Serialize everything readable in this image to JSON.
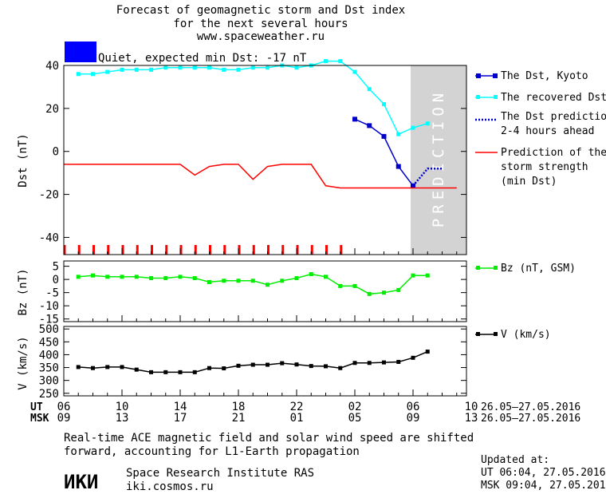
{
  "title": {
    "line1": "Forecast of geomagnetic storm and Dst index",
    "line2": "for the next several hours",
    "line3": "www.spaceweather.ru"
  },
  "status": {
    "text": "Quiet, expected min Dst: -17 nT",
    "color": "#0000ff"
  },
  "prediction_label": "PREDICTION",
  "axes": {
    "x_ut": {
      "label": "UT",
      "ticks": [
        "06",
        "10",
        "14",
        "18",
        "22",
        "02",
        "06",
        "10"
      ],
      "range_text": "26.05—27.05.2016"
    },
    "x_msk": {
      "label": "MSK",
      "ticks": [
        "09",
        "13",
        "17",
        "21",
        "01",
        "05",
        "09",
        "13"
      ],
      "range_text": "26.05—27.05.2016"
    }
  },
  "legend": {
    "dst_kyoto": "The Dst, Kyoto",
    "dst_recovered": "The recovered Dst",
    "dst_pred_line1": "The Dst prediction",
    "dst_pred_line2": "2-4 hours ahead",
    "storm_line1": "Prediction of the",
    "storm_line2": "storm strength",
    "storm_line3": "(min Dst)",
    "bz": "Bz (nT, GSM)",
    "v": "V (km/s)"
  },
  "footer": {
    "note_line1": "Real-time ACE magnetic field and solar wind speed are shifted",
    "note_line2": "forward, accounting for L1-Earth propagation",
    "logo": "ИКИ",
    "institute": "Space Research Institute RAS",
    "site": "iki.cosmos.ru",
    "updated_label": "Updated at:",
    "updated_ut": "UT   06:04, 27.05.2016",
    "updated_msk": "MSK 09:04, 27.05.2016"
  },
  "colors": {
    "kyoto": "#0000cc",
    "recovered": "#00ffff",
    "prediction": "#0000cc",
    "storm": "#ff0000",
    "bz": "#00ee00",
    "v": "#000000",
    "shade": "#d3d3d3"
  },
  "chart_data": [
    {
      "type": "line",
      "ylabel": "Dst (nT)",
      "ylim": [
        -48,
        40
      ],
      "yticks": [
        40,
        20,
        0,
        -20,
        -40
      ],
      "prediction_start_h": 24,
      "series": [
        {
          "name": "The Dst, Kyoto",
          "x": [
            20,
            21,
            22,
            23,
            24
          ],
          "values": [
            15,
            12,
            7,
            -7,
            -16
          ]
        },
        {
          "name": "The recovered Dst",
          "x": [
            1,
            2,
            3,
            4,
            5,
            6,
            7,
            8,
            9,
            10,
            11,
            12,
            13,
            14,
            15,
            16,
            17,
            18,
            19,
            20,
            21,
            22,
            23,
            24,
            25
          ],
          "values": [
            36,
            36,
            37,
            38,
            38,
            38,
            39,
            39,
            39,
            39,
            38,
            38,
            39,
            39,
            40,
            39,
            40,
            42,
            42,
            37,
            29,
            22,
            8,
            11,
            13
          ]
        },
        {
          "name": "The Dst prediction 2-4 hours ahead",
          "x": [
            24,
            25,
            26
          ],
          "values": [
            -16,
            -8,
            -8
          ]
        },
        {
          "name": "Prediction of the storm strength (min Dst)",
          "x": [
            0,
            8,
            9,
            10,
            11,
            12,
            13,
            14,
            15,
            16,
            17,
            18,
            19,
            20,
            21,
            22,
            23,
            24,
            25,
            26,
            27
          ],
          "values": [
            -6,
            -6,
            -11,
            -7,
            -6,
            -6,
            -13,
            -7,
            -6,
            -6,
            -6,
            -16,
            -17,
            -17,
            -17,
            -17,
            -17,
            -17,
            -17,
            -17,
            -17
          ]
        }
      ],
      "marker_hours": [
        0,
        1,
        2,
        3,
        4,
        5,
        6,
        7,
        8,
        9,
        10,
        11,
        12,
        13,
        14,
        15,
        16,
        17,
        18,
        19
      ]
    },
    {
      "type": "line",
      "ylabel": "Bz (nT)",
      "ylim": [
        -16,
        7
      ],
      "yticks": [
        5,
        0,
        -5,
        -10,
        -15
      ],
      "series": [
        {
          "name": "Bz (nT, GSM)",
          "x": [
            1,
            2,
            3,
            4,
            5,
            6,
            7,
            8,
            9,
            10,
            11,
            12,
            13,
            14,
            15,
            16,
            17,
            18,
            19,
            20,
            21,
            22,
            23,
            24,
            25
          ],
          "values": [
            1,
            1.5,
            1,
            1,
            1,
            0.5,
            0.5,
            1,
            0.5,
            -1,
            -0.5,
            -0.5,
            -0.5,
            -2,
            -0.5,
            0.5,
            2,
            1,
            -2.5,
            -2.5,
            -5.5,
            -5,
            -4,
            1.5,
            1.5
          ]
        }
      ]
    },
    {
      "type": "line",
      "ylabel": "V (km/s)",
      "ylim": [
        240,
        510
      ],
      "yticks": [
        500,
        450,
        400,
        350,
        300,
        250
      ],
      "series": [
        {
          "name": "V (km/s)",
          "x": [
            1,
            2,
            3,
            4,
            5,
            6,
            7,
            8,
            9,
            10,
            11,
            12,
            13,
            14,
            15,
            16,
            17,
            18,
            19,
            20,
            21,
            22,
            23,
            24,
            25
          ],
          "values": [
            352,
            348,
            352,
            352,
            342,
            332,
            332,
            332,
            332,
            348,
            347,
            357,
            361,
            361,
            367,
            362,
            356,
            355,
            348,
            368,
            368,
            370,
            372,
            388,
            412
          ]
        }
      ]
    }
  ]
}
